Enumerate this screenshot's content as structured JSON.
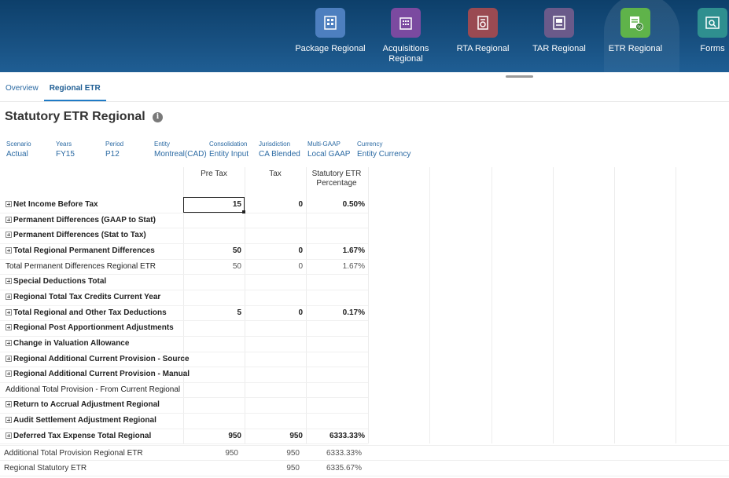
{
  "nav": [
    {
      "name": "package-regional",
      "label": "Package Regional",
      "icon": "package-icon",
      "color": "#4d7fbf"
    },
    {
      "name": "acquisitions-regional",
      "label": "Acquisitions Regional",
      "icon": "building-icon",
      "color": "#7b4aa0"
    },
    {
      "name": "rta-regional",
      "label": "RTA Regional",
      "icon": "rta-icon",
      "color": "#9a4a52"
    },
    {
      "name": "tar-regional",
      "label": "TAR Regional",
      "icon": "tar-icon",
      "color": "#6a5a8a"
    },
    {
      "name": "etr-regional",
      "label": "ETR Regional",
      "icon": "etr-icon",
      "color": "#5fb34a"
    },
    {
      "name": "forms",
      "label": "Forms",
      "icon": "forms-icon",
      "color": "#2f8f8f"
    }
  ],
  "tabs": [
    {
      "label": "Overview",
      "active": false
    },
    {
      "label": "Regional ETR",
      "active": true
    }
  ],
  "page_title": "Statutory ETR Regional",
  "pov": [
    {
      "label": "Scenario",
      "value": "Actual"
    },
    {
      "label": "Years",
      "value": "FY15"
    },
    {
      "label": "Period",
      "value": "P12"
    },
    {
      "label": "Entity",
      "value": "Montreal(CAD)"
    },
    {
      "label": "Consolidation",
      "value": "Entity Input"
    },
    {
      "label": "Jurisdiction",
      "value": "CA Blended"
    },
    {
      "label": "Multi-GAAP",
      "value": "Local GAAP"
    },
    {
      "label": "Currency",
      "value": "Entity Currency"
    }
  ],
  "columns": [
    "Pre Tax",
    "Tax",
    "Statutory ETR Percentage"
  ],
  "rows": [
    {
      "label": "Net Income Before Tax",
      "bold": true,
      "expand": true,
      "pretax": "15",
      "tax": "0",
      "etr": "0.50%"
    },
    {
      "label": "Permanent Differences (GAAP to Stat)",
      "bold": true,
      "expand": true,
      "pretax": "",
      "tax": "",
      "etr": ""
    },
    {
      "label": "Permanent Differences (Stat to Tax)",
      "bold": true,
      "expand": true,
      "pretax": "",
      "tax": "",
      "etr": ""
    },
    {
      "label": "Total Regional Permanent Differences",
      "bold": true,
      "expand": true,
      "pretax": "50",
      "tax": "0",
      "etr": "1.67%"
    },
    {
      "label": "Total Permanent Differences Regional ETR",
      "bold": false,
      "expand": false,
      "pretax": "50",
      "tax": "0",
      "etr": "1.67%"
    },
    {
      "label": "Special Deductions Total",
      "bold": true,
      "expand": true,
      "pretax": "",
      "tax": "",
      "etr": ""
    },
    {
      "label": "Regional Total Tax Credits Current Year",
      "bold": true,
      "expand": true,
      "pretax": "",
      "tax": "",
      "etr": ""
    },
    {
      "label": "Total Regional and Other Tax Deductions",
      "bold": true,
      "expand": true,
      "pretax": "5",
      "tax": "0",
      "etr": "0.17%"
    },
    {
      "label": "Regional Post Apportionment Adjustments",
      "bold": true,
      "expand": true,
      "pretax": "",
      "tax": "",
      "etr": ""
    },
    {
      "label": "Change in Valuation Allowance",
      "bold": true,
      "expand": true,
      "pretax": "",
      "tax": "",
      "etr": ""
    },
    {
      "label": "Regional Additional Current Provision - Source",
      "bold": true,
      "expand": true,
      "pretax": "",
      "tax": "",
      "etr": ""
    },
    {
      "label": "Regional Additional Current Provision - Manual",
      "bold": true,
      "expand": true,
      "pretax": "",
      "tax": "",
      "etr": ""
    },
    {
      "label": "Additional Total Provision - From Current Regional",
      "bold": false,
      "expand": false,
      "pretax": "",
      "tax": "",
      "etr": ""
    },
    {
      "label": "Return to Accrual Adjustment Regional",
      "bold": true,
      "expand": true,
      "pretax": "",
      "tax": "",
      "etr": ""
    },
    {
      "label": "Audit Settlement Adjustment Regional",
      "bold": true,
      "expand": true,
      "pretax": "",
      "tax": "",
      "etr": ""
    },
    {
      "label": "Deferred Tax Expense Total Regional",
      "bold": true,
      "expand": true,
      "pretax": "950",
      "tax": "950",
      "etr": "6333.33%"
    }
  ],
  "footer_rows": [
    {
      "label": "Additional Total Provision Regional ETR",
      "pretax": "950",
      "tax": "950",
      "etr": "6333.33%"
    },
    {
      "label": "Regional Statutory ETR",
      "pretax": "",
      "tax": "950",
      "etr": "6335.67%"
    }
  ]
}
